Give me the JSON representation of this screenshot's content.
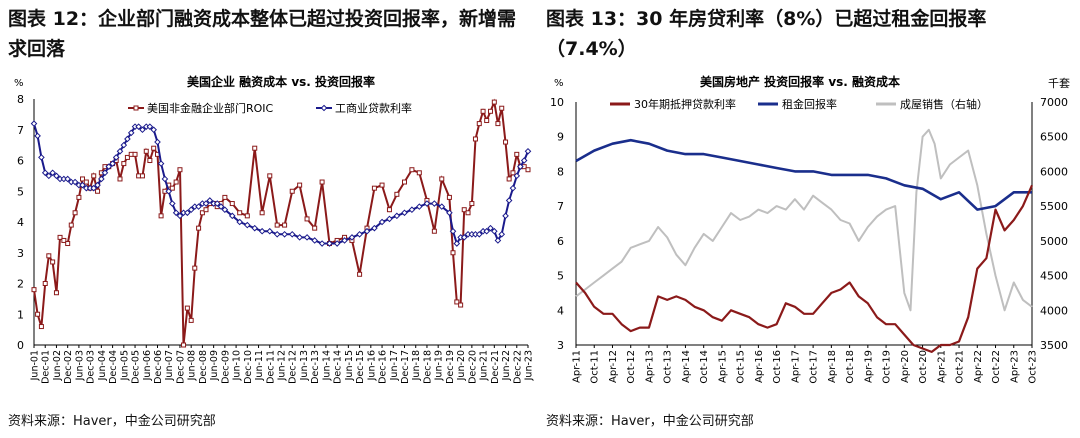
{
  "fig12": {
    "title": "图表 12：企业部门融资成本整体已超过投资回报率，新增需求回落",
    "source": "资料来源：Haver，中金公司研究部",
    "chart_data": {
      "type": "line",
      "title": "美国企业 融资成本 vs. 投资回报率",
      "yunit": "%",
      "ylim": [
        0,
        8
      ],
      "yticks": [
        0,
        1,
        2,
        3,
        4,
        5,
        6,
        7,
        8
      ],
      "xlim": [
        2001.42,
        2023.42
      ],
      "xtick_labels": [
        "Jun-01",
        "Dec-01",
        "Jun-02",
        "Dec-02",
        "Jun-03",
        "Dec-03",
        "Jun-04",
        "Dec-04",
        "Jun-05",
        "Dec-05",
        "Jun-06",
        "Dec-06",
        "Jun-07",
        "Dec-07",
        "Jun-08",
        "Dec-08",
        "Jun-09",
        "Dec-09",
        "Jun-10",
        "Dec-10",
        "Jun-11",
        "Dec-11",
        "Jun-12",
        "Dec-12",
        "Jun-13",
        "Dec-13",
        "Jun-14",
        "Dec-14",
        "Jun-15",
        "Dec-15",
        "Jun-16",
        "Dec-16",
        "Jun-17",
        "Dec-17",
        "Jun-18",
        "Dec-18",
        "Jun-19",
        "Dec-19",
        "Jun-20",
        "Dec-20",
        "Jun-21",
        "Dec-21",
        "Jun-22",
        "Dec-22",
        "Jun-23"
      ],
      "legend_position": "top",
      "series": [
        {
          "name": "美国非金融企业部门ROIC",
          "color": "#8B1A1A",
          "marker": "square",
          "x": [
            2001.42,
            2001.58,
            2001.75,
            2001.92,
            2002.08,
            2002.25,
            2002.42,
            2002.58,
            2002.75,
            2002.92,
            2003.08,
            2003.25,
            2003.42,
            2003.58,
            2003.75,
            2003.92,
            2004.08,
            2004.25,
            2004.42,
            2004.58,
            2004.75,
            2004.92,
            2005.08,
            2005.25,
            2005.42,
            2005.58,
            2005.75,
            2005.92,
            2006.08,
            2006.25,
            2006.42,
            2006.58,
            2006.75,
            2006.92,
            2007.08,
            2007.25,
            2007.42,
            2007.58,
            2007.75,
            2007.92,
            2008.08,
            2008.25,
            2008.42,
            2008.58,
            2008.75,
            2008.92,
            2009.08,
            2009.25,
            2009.42,
            2009.58,
            2009.75,
            2009.92,
            2010.25,
            2010.58,
            2010.92,
            2011.25,
            2011.58,
            2011.92,
            2012.25,
            2012.58,
            2012.92,
            2013.25,
            2013.58,
            2013.92,
            2014.25,
            2014.58,
            2014.92,
            2015.25,
            2015.58,
            2015.92,
            2016.25,
            2016.58,
            2016.92,
            2017.25,
            2017.58,
            2017.92,
            2018.25,
            2018.58,
            2018.92,
            2019.25,
            2019.58,
            2019.92,
            2020.08,
            2020.25,
            2020.42,
            2020.58,
            2020.75,
            2020.92,
            2021.08,
            2021.25,
            2021.42,
            2021.58,
            2021.75,
            2021.92,
            2022.08,
            2022.25,
            2022.42,
            2022.58,
            2022.75,
            2022.92,
            2023.08,
            2023.25,
            2023.42
          ],
          "y": [
            1.8,
            1.0,
            0.6,
            2.0,
            2.9,
            2.7,
            1.7,
            3.5,
            3.4,
            3.3,
            3.9,
            4.3,
            4.8,
            5.4,
            5.3,
            5.1,
            5.5,
            5.0,
            5.6,
            5.8,
            5.8,
            5.9,
            6.0,
            5.4,
            5.9,
            6.1,
            6.2,
            6.2,
            5.5,
            5.5,
            6.3,
            6.0,
            6.4,
            6.2,
            4.2,
            5.0,
            5.2,
            5.1,
            5.3,
            5.7,
            0.0,
            1.2,
            0.8,
            2.5,
            3.8,
            4.3,
            4.4,
            4.6,
            4.6,
            4.5,
            4.6,
            4.8,
            4.6,
            4.3,
            4.2,
            6.4,
            4.3,
            5.5,
            3.9,
            3.9,
            5.0,
            5.2,
            4.1,
            3.8,
            5.3,
            3.3,
            3.4,
            3.5,
            3.4,
            2.3,
            3.8,
            5.1,
            5.2,
            4.4,
            4.9,
            5.3,
            5.7,
            5.6,
            4.7,
            3.7,
            5.4,
            4.8,
            3.0,
            1.4,
            1.3,
            4.4,
            4.3,
            4.6,
            6.7,
            7.2,
            7.6,
            7.3,
            7.6,
            7.9,
            7.2,
            7.7,
            6.6,
            5.4,
            5.6,
            6.2,
            5.8,
            5.8,
            5.7
          ]
        },
        {
          "name": "工商业贷款利率",
          "color": "#1A1A8C",
          "marker": "diamond",
          "x": [
            2001.42,
            2001.58,
            2001.75,
            2001.92,
            2002.08,
            2002.25,
            2002.42,
            2002.58,
            2002.75,
            2002.92,
            2003.08,
            2003.25,
            2003.42,
            2003.58,
            2003.75,
            2003.92,
            2004.08,
            2004.25,
            2004.42,
            2004.58,
            2004.75,
            2004.92,
            2005.08,
            2005.25,
            2005.42,
            2005.58,
            2005.75,
            2005.92,
            2006.08,
            2006.25,
            2006.42,
            2006.58,
            2006.75,
            2006.92,
            2007.08,
            2007.25,
            2007.42,
            2007.58,
            2007.75,
            2007.92,
            2008.08,
            2008.25,
            2008.42,
            2008.58,
            2008.75,
            2008.92,
            2009.08,
            2009.25,
            2009.42,
            2009.58,
            2009.75,
            2009.92,
            2010.25,
            2010.58,
            2010.92,
            2011.25,
            2011.58,
            2011.92,
            2012.25,
            2012.58,
            2012.92,
            2013.25,
            2013.58,
            2013.92,
            2014.25,
            2014.58,
            2014.92,
            2015.25,
            2015.58,
            2015.92,
            2016.25,
            2016.58,
            2016.92,
            2017.25,
            2017.58,
            2017.92,
            2018.25,
            2018.58,
            2018.92,
            2019.25,
            2019.58,
            2019.92,
            2020.08,
            2020.25,
            2020.42,
            2020.58,
            2020.75,
            2020.92,
            2021.08,
            2021.25,
            2021.42,
            2021.58,
            2021.75,
            2021.92,
            2022.08,
            2022.25,
            2022.42,
            2022.58,
            2022.75,
            2022.92,
            2023.08,
            2023.25,
            2023.42
          ],
          "y": [
            7.2,
            6.8,
            6.1,
            5.6,
            5.5,
            5.6,
            5.5,
            5.4,
            5.4,
            5.4,
            5.3,
            5.3,
            5.2,
            5.2,
            5.1,
            5.1,
            5.1,
            5.2,
            5.4,
            5.6,
            5.8,
            5.9,
            6.1,
            6.3,
            6.5,
            6.7,
            6.9,
            7.1,
            7.1,
            7.0,
            7.1,
            7.1,
            7.0,
            6.6,
            5.9,
            5.4,
            5.0,
            4.6,
            4.3,
            4.2,
            4.3,
            4.3,
            4.4,
            4.5,
            4.5,
            4.6,
            4.6,
            4.7,
            4.6,
            4.6,
            4.5,
            4.4,
            4.2,
            4.0,
            3.9,
            3.8,
            3.7,
            3.7,
            3.6,
            3.6,
            3.6,
            3.5,
            3.5,
            3.4,
            3.3,
            3.3,
            3.3,
            3.4,
            3.5,
            3.6,
            3.7,
            3.8,
            4.0,
            4.1,
            4.2,
            4.3,
            4.4,
            4.5,
            4.6,
            4.6,
            4.5,
            4.3,
            3.7,
            3.3,
            3.5,
            3.5,
            3.6,
            3.6,
            3.6,
            3.6,
            3.7,
            3.7,
            3.8,
            3.7,
            3.4,
            3.6,
            4.2,
            4.7,
            5.1,
            5.5,
            5.8,
            6.0,
            6.3
          ]
        }
      ]
    }
  },
  "fig13": {
    "title": "图表 13：30 年房贷利率（8%）已超过租金回报率（7.4%）",
    "source": "资料来源：Haver，中金公司研究部",
    "chart_data": {
      "type": "line",
      "title": "美国房地产 投资回报率 vs. 融资成本",
      "yunit": "%",
      "y2unit": "千套",
      "ylim": [
        3,
        10
      ],
      "yticks": [
        3,
        4,
        5,
        6,
        7,
        8,
        9,
        10
      ],
      "y2lim": [
        3500,
        7000
      ],
      "y2ticks": [
        3500,
        4000,
        4500,
        5000,
        5500,
        6000,
        6500,
        7000
      ],
      "xlim": [
        2011.25,
        2023.75
      ],
      "xtick_labels": [
        "Apr-11",
        "Oct-11",
        "Apr-12",
        "Oct-12",
        "Apr-13",
        "Oct-13",
        "Apr-14",
        "Oct-14",
        "Apr-15",
        "Oct-15",
        "Apr-16",
        "Oct-16",
        "Apr-17",
        "Oct-17",
        "Apr-18",
        "Oct-18",
        "Apr-19",
        "Oct-19",
        "Apr-20",
        "Oct-20",
        "Apr-21",
        "Oct-21",
        "Apr-22",
        "Oct-22",
        "Apr-23",
        "Oct-23"
      ],
      "legend_position": "top",
      "series": [
        {
          "name": "30年期抵押贷款利率",
          "color": "#8B1A1A",
          "axis": "left",
          "x": [
            2011.25,
            2011.5,
            2011.75,
            2012.0,
            2012.25,
            2012.5,
            2012.75,
            2013.0,
            2013.25,
            2013.5,
            2013.75,
            2014.0,
            2014.25,
            2014.5,
            2014.75,
            2015.0,
            2015.25,
            2015.5,
            2015.75,
            2016.0,
            2016.25,
            2016.5,
            2016.75,
            2017.0,
            2017.25,
            2017.5,
            2017.75,
            2018.0,
            2018.25,
            2018.5,
            2018.75,
            2019.0,
            2019.25,
            2019.5,
            2019.75,
            2020.0,
            2020.25,
            2020.5,
            2020.75,
            2021.0,
            2021.25,
            2021.5,
            2021.75,
            2022.0,
            2022.25,
            2022.5,
            2022.75,
            2023.0,
            2023.25,
            2023.5,
            2023.75
          ],
          "y": [
            4.8,
            4.5,
            4.1,
            3.9,
            3.9,
            3.6,
            3.4,
            3.5,
            3.5,
            4.4,
            4.3,
            4.4,
            4.3,
            4.1,
            4.0,
            3.8,
            3.7,
            4.0,
            3.9,
            3.8,
            3.6,
            3.5,
            3.6,
            4.2,
            4.1,
            3.9,
            3.9,
            4.2,
            4.5,
            4.6,
            4.8,
            4.4,
            4.2,
            3.8,
            3.6,
            3.6,
            3.3,
            3.0,
            2.9,
            2.8,
            3.0,
            3.0,
            3.1,
            3.8,
            5.2,
            5.5,
            6.9,
            6.3,
            6.6,
            7.0,
            7.6
          ]
        },
        {
          "name": "租金回报率",
          "color": "#1A2E8C",
          "axis": "left",
          "x": [
            2011.25,
            2011.75,
            2012.25,
            2012.75,
            2013.25,
            2013.75,
            2014.25,
            2014.75,
            2015.25,
            2015.75,
            2016.25,
            2016.75,
            2017.25,
            2017.75,
            2018.25,
            2018.75,
            2019.25,
            2019.75,
            2020.25,
            2020.75,
            2021.25,
            2021.75,
            2022.25,
            2022.75,
            2023.25,
            2023.75
          ],
          "y": [
            8.3,
            8.6,
            8.8,
            8.9,
            8.8,
            8.6,
            8.5,
            8.5,
            8.4,
            8.3,
            8.2,
            8.1,
            8.0,
            8.0,
            7.9,
            7.9,
            7.9,
            7.8,
            7.6,
            7.5,
            7.2,
            7.4,
            6.9,
            7.0,
            7.4,
            7.4
          ]
        },
        {
          "name": "成屋销售（右轴）",
          "color": "#BFBFBF",
          "axis": "right",
          "x": [
            2011.25,
            2011.5,
            2011.75,
            2012.0,
            2012.25,
            2012.5,
            2012.75,
            2013.0,
            2013.25,
            2013.5,
            2013.75,
            2014.0,
            2014.25,
            2014.5,
            2014.75,
            2015.0,
            2015.25,
            2015.5,
            2015.75,
            2016.0,
            2016.25,
            2016.5,
            2016.75,
            2017.0,
            2017.25,
            2017.5,
            2017.75,
            2018.0,
            2018.25,
            2018.5,
            2018.75,
            2019.0,
            2019.25,
            2019.5,
            2019.75,
            2020.0,
            2020.25,
            2020.42,
            2020.58,
            2020.75,
            2020.92,
            2021.08,
            2021.25,
            2021.5,
            2021.75,
            2022.0,
            2022.25,
            2022.5,
            2022.75,
            2023.0,
            2023.25,
            2023.5,
            2023.75
          ],
          "y": [
            4200,
            4300,
            4400,
            4500,
            4600,
            4700,
            4900,
            4950,
            5000,
            5200,
            5050,
            4800,
            4650,
            4900,
            5100,
            5000,
            5200,
            5400,
            5300,
            5350,
            5450,
            5400,
            5500,
            5450,
            5600,
            5450,
            5650,
            5550,
            5450,
            5300,
            5250,
            5000,
            5200,
            5350,
            5450,
            5500,
            4250,
            4000,
            5700,
            6500,
            6600,
            6400,
            5900,
            6100,
            6200,
            6300,
            5800,
            5100,
            4500,
            4000,
            4400,
            4150,
            4050
          ]
        }
      ]
    }
  }
}
